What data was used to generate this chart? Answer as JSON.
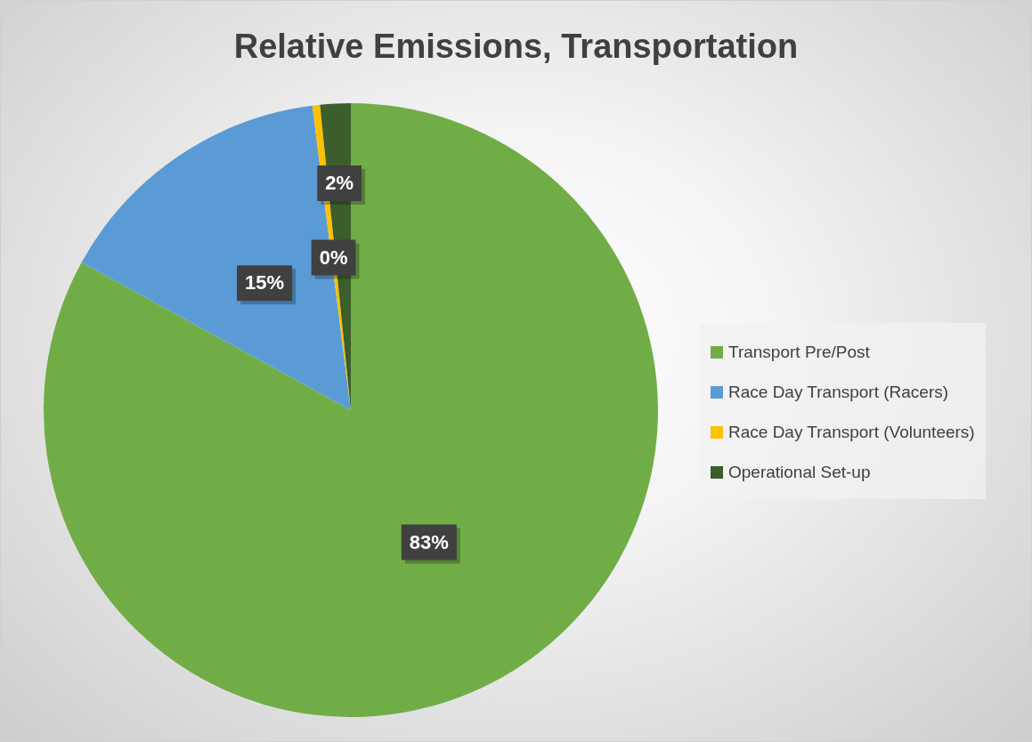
{
  "chart_data": {
    "type": "pie",
    "title": "Relative Emissions, Transportation",
    "categories": [
      "Transport Pre/Post",
      "Race Day Transport (Racers)",
      "Race Day Transport (Volunteers)",
      "Operational Set-up"
    ],
    "values": [
      83.0,
      15.0,
      0.4,
      1.6
    ],
    "colors": [
      "#70ad47",
      "#5b9bd5",
      "#ffc000",
      "#3b5e2b"
    ],
    "value_labels": [
      "83%",
      "15%",
      "0%",
      "2%"
    ],
    "legend": "right"
  }
}
